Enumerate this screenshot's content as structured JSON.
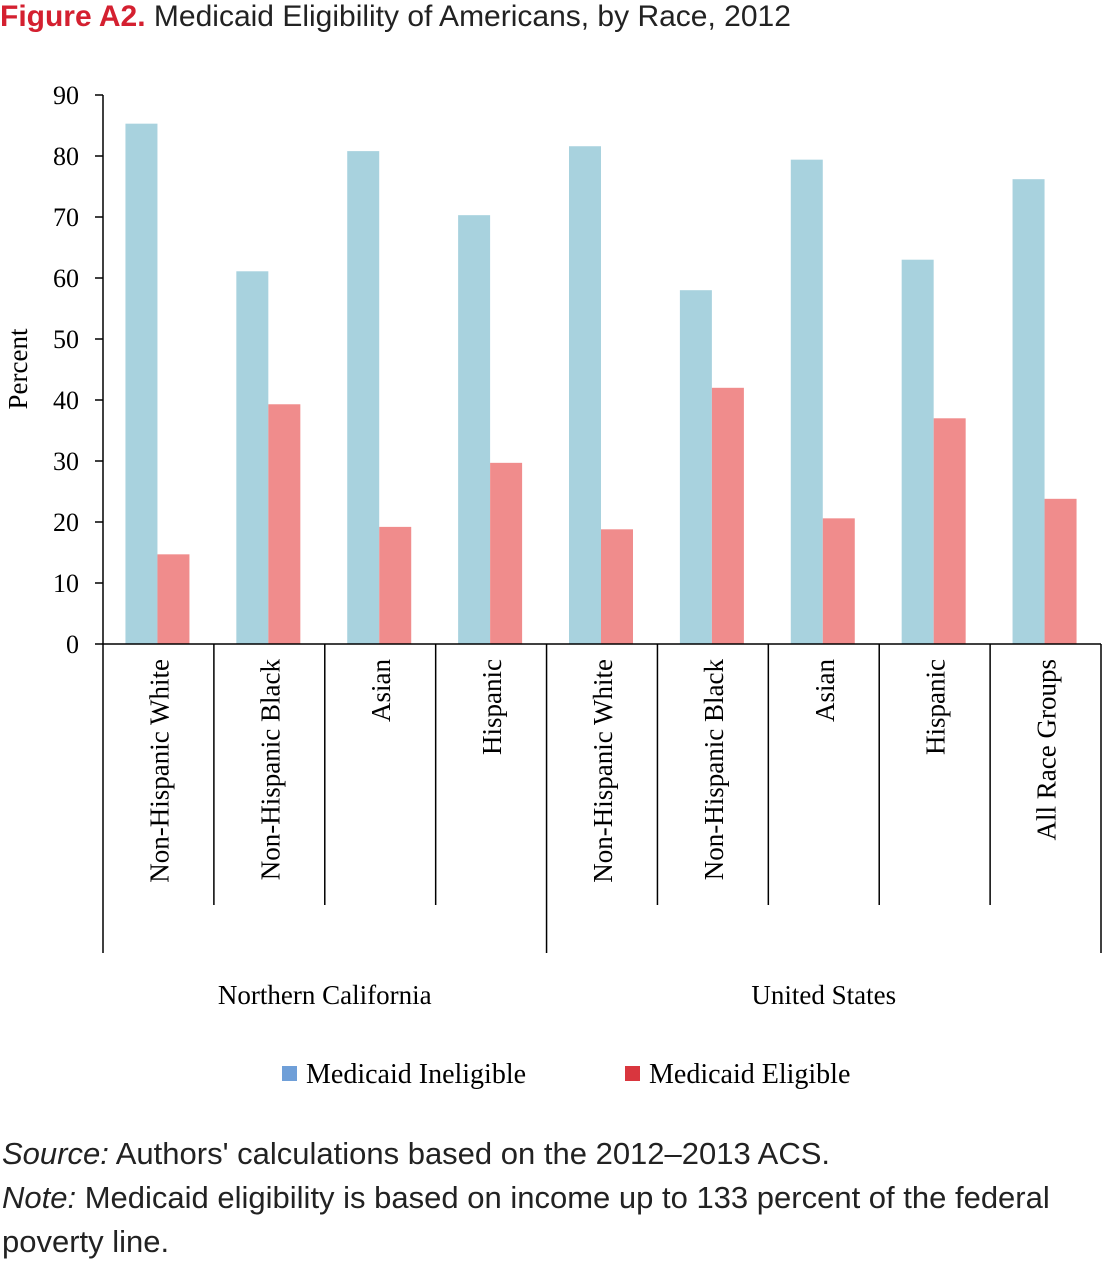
{
  "header": {
    "figure_label": "Figure A2.",
    "title": "Medicaid Eligibility of Americans, by Race, 2012"
  },
  "chart_data": {
    "type": "bar",
    "ylabel": "Percent",
    "ylim": [
      0,
      90
    ],
    "yticks": [
      0,
      10,
      20,
      30,
      40,
      50,
      60,
      70,
      80,
      90
    ],
    "categories": [
      "Non-Hispanic White",
      "Non-Hispanic Black",
      "Asian",
      "Hispanic",
      "Non-Hispanic White",
      "Non-Hispanic Black",
      "Asian",
      "Hispanic",
      "All Race Groups"
    ],
    "groups": [
      {
        "label": "Northern California",
        "start": 0,
        "end": 4
      },
      {
        "label": "United States",
        "start": 4,
        "end": 9
      }
    ],
    "series": [
      {
        "name": "Medicaid Ineligible",
        "color": "#a8d2de",
        "values": [
          85.3,
          61.1,
          80.8,
          70.3,
          81.6,
          58.0,
          79.4,
          63.0,
          76.2
        ]
      },
      {
        "name": "Medicaid Eligible",
        "color": "#f08c8c",
        "values": [
          14.7,
          39.3,
          19.2,
          29.7,
          18.8,
          42.0,
          20.6,
          37.0,
          23.8
        ]
      }
    ],
    "legend_swatch_colors": [
      "#6f9fd8",
      "#d9363e"
    ],
    "legend_position": "bottom",
    "grid": false
  },
  "footer": {
    "source_label": "Source:",
    "source_text": " Authors' calculations based on the 2012–2013 ACS.",
    "note_label": "Note:",
    "note_text": " Medicaid eligibility is based on income up to 133 percent of the federal poverty line."
  }
}
